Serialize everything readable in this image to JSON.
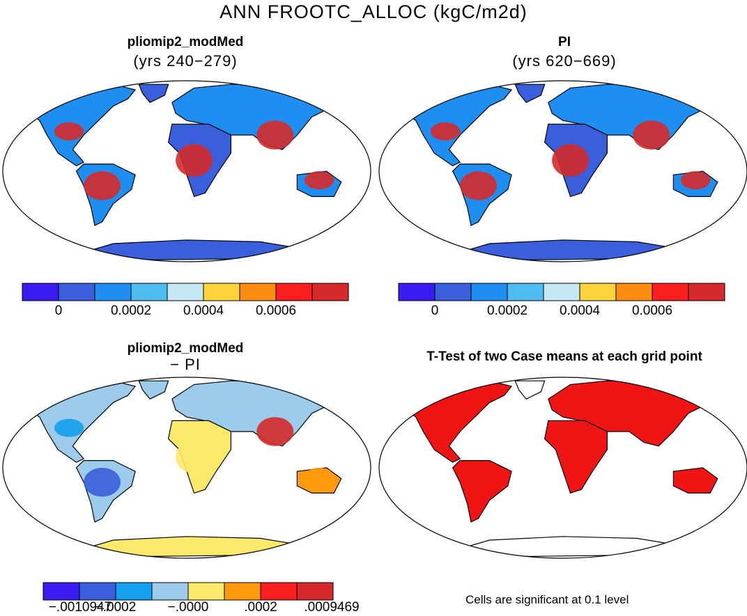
{
  "figure_title": "ANN FROOTC_ALLOC (kgC/m2d)",
  "panels": [
    {
      "id": "p1",
      "title": "pliomip2_modMed",
      "subtitle": "(yrs 240−279)"
    },
    {
      "id": "p2",
      "title": "PI",
      "subtitle": "(yrs 620−669)"
    },
    {
      "id": "p3",
      "title": "pliomip2_modMed",
      "subtitle": "− PI"
    },
    {
      "id": "p4",
      "title": "T-Test of two Case means at each grid point",
      "subtitle": ""
    }
  ],
  "colorbars": {
    "absolute": {
      "colors": [
        "#3b1cf0",
        "#3a5fdc",
        "#1e8ff0",
        "#4fbcf0",
        "#c6e8f6",
        "#fdd23a",
        "#fd8c12",
        "#fa1e1e",
        "#d42a2a"
      ],
      "tick_labels": [
        "0",
        "0.0002",
        "0.0004",
        "0.0006"
      ]
    },
    "difference": {
      "colors": [
        "#3b1cf0",
        "#3a5fdc",
        "#13a0ee",
        "#9ccbeb",
        "#fce96a",
        "#fd9a0e",
        "#fa1e1e",
        "#d42a2a"
      ],
      "tick_labels": [
        "−.0010947",
        "−.0002",
        "−.0000",
        ".0002",
        ".0009469"
      ]
    }
  },
  "significance_note": "Cells are significant at 0.1 level",
  "significance_color": "#f01414"
}
